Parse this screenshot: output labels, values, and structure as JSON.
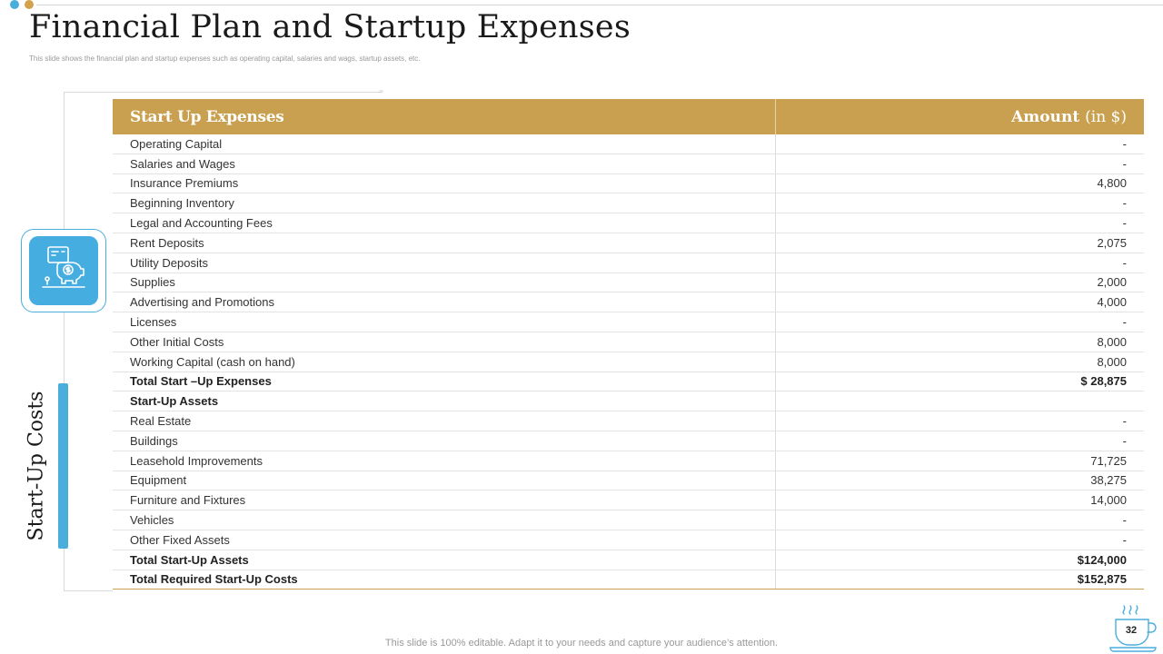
{
  "slide": {
    "title": "Financial Plan and Startup Expenses",
    "subtitle": "This slide shows the financial plan and startup expenses such as operating capital, salaries and wags, startup assets, etc.",
    "side_label": "Start-Up Costs",
    "footer": "This slide is 100% editable. Adapt it to your needs and capture your audience’s attention.",
    "page_number": "32",
    "icons": {
      "side": "piggy-bank-dollar-icon",
      "page": "coffee-cup-icon"
    },
    "colors": {
      "accent_gold": "#c9a04f",
      "accent_blue": "#4aaedc"
    }
  },
  "table": {
    "header": {
      "col1": "Start Up Expenses",
      "col2": "Amount",
      "col2_unit": "(in $)"
    },
    "rows": [
      {
        "label": "Operating Capital",
        "value": "-",
        "bold": false
      },
      {
        "label": "Salaries and Wages",
        "value": "-",
        "bold": false
      },
      {
        "label": "Insurance Premiums",
        "value": "4,800",
        "bold": false
      },
      {
        "label": "Beginning Inventory",
        "value": "-",
        "bold": false
      },
      {
        "label": "Legal and Accounting Fees",
        "value": "-",
        "bold": false
      },
      {
        "label": "Rent Deposits",
        "value": "2,075",
        "bold": false
      },
      {
        "label": "Utility Deposits",
        "value": "-",
        "bold": false
      },
      {
        "label": "Supplies",
        "value": "2,000",
        "bold": false
      },
      {
        "label": "Advertising and Promotions",
        "value": "4,000",
        "bold": false
      },
      {
        "label": "Licenses",
        "value": "-",
        "bold": false
      },
      {
        "label": "Other Initial Costs",
        "value": "8,000",
        "bold": false
      },
      {
        "label": "Working Capital (cash on hand)",
        "value": "8,000",
        "bold": false
      },
      {
        "label": "Total Start –Up Expenses",
        "value": "$ 28,875",
        "bold": true
      },
      {
        "label": "Start-Up Assets",
        "value": "",
        "bold": true
      },
      {
        "label": "Real Estate",
        "value": "-",
        "bold": false
      },
      {
        "label": "Buildings",
        "value": "-",
        "bold": false
      },
      {
        "label": "Leasehold Improvements",
        "value": "71,725",
        "bold": false
      },
      {
        "label": "Equipment",
        "value": "38,275",
        "bold": false
      },
      {
        "label": "Furniture and Fixtures",
        "value": "14,000",
        "bold": false
      },
      {
        "label": "Vehicles",
        "value": "-",
        "bold": false
      },
      {
        "label": "Other Fixed Assets",
        "value": "-",
        "bold": false
      },
      {
        "label": "Total Start-Up Assets",
        "value": "$124,000",
        "bold": true
      },
      {
        "label": "Total Required Start-Up Costs",
        "value": "$152,875",
        "bold": true
      }
    ]
  }
}
